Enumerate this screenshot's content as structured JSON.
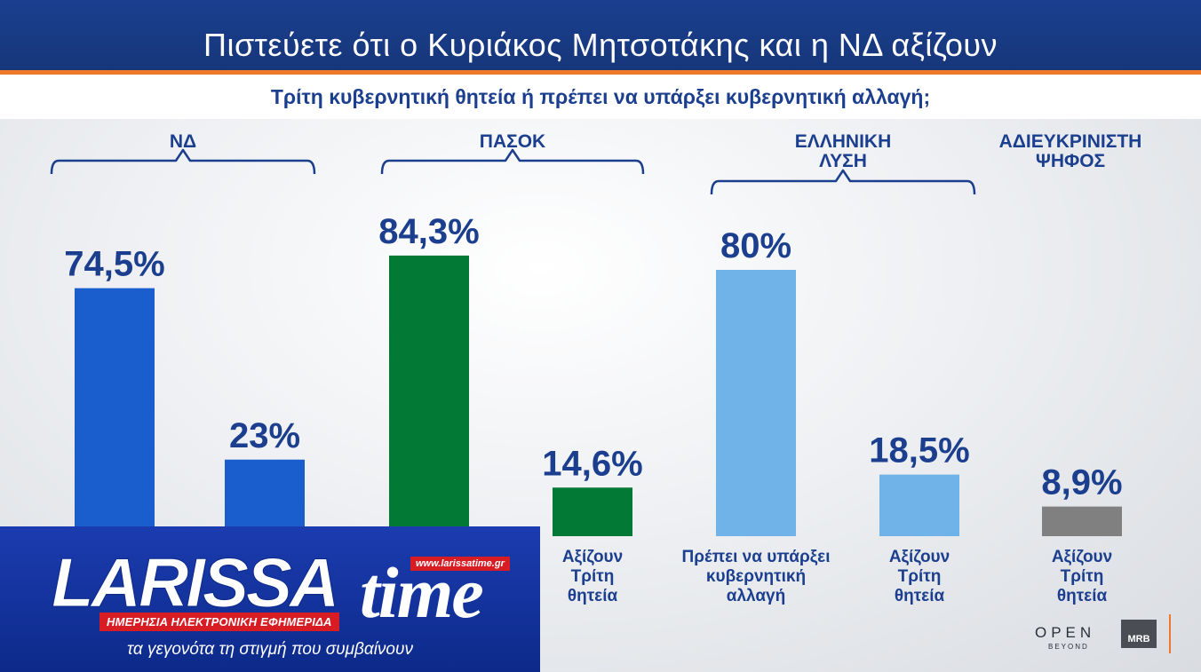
{
  "header": {
    "title": "Πιστεύετε ότι ο Κυριάκος Μητσοτάκης και η ΝΔ αξίζουν",
    "subtitle": "Τρίτη κυβερνητική θητεία ή πρέπει να υπάρξει κυβερνητική αλλαγή;"
  },
  "chart_data": {
    "type": "bar",
    "title": "Πιστεύετε ότι ο Κυριάκος Μητσοτάκης και η ΝΔ αξίζουν",
    "subtitle": "Τρίτη κυβερνητική θητεία ή πρέπει να υπάρξει κυβερνητική αλλαγή;",
    "groups": [
      {
        "name": "ΝΔ",
        "color": "#1a5dcc",
        "bars": [
          {
            "label": "",
            "value": 74.5,
            "value_label": "74,5%"
          },
          {
            "label": "",
            "value": 23,
            "value_label": "23%"
          }
        ]
      },
      {
        "name": "ΠΑΣΟΚ",
        "color": "#027a36",
        "bars": [
          {
            "label": "",
            "value": 84.3,
            "value_label": "84,3%"
          },
          {
            "label": "Αξίζουν Τρίτη θητεία",
            "value": 14.6,
            "value_label": "14,6%"
          }
        ]
      },
      {
        "name": "ΕΛΛΗΝΙΚΗ ΛΥΣΗ",
        "color": "#6fb3e8",
        "bars": [
          {
            "label": "Πρέπει να υπάρξει κυβερνητική αλλαγή",
            "value": 80,
            "value_label": "80%"
          },
          {
            "label": "Αξίζουν Τρίτη θητεία",
            "value": 18.5,
            "value_label": "18,5%"
          }
        ]
      },
      {
        "name": "ΑΔΙΕΥΚΡΙΝΙΣΤΗ ΨΗΦΟΣ",
        "color": "#808080",
        "bars": [
          {
            "label": "Αξίζουν Τρίτη θητεία",
            "value": 8.9,
            "value_label": "8,9%"
          }
        ]
      }
    ],
    "ylim": [
      0,
      100
    ],
    "grid": false,
    "legend": "none"
  },
  "logo": {
    "main": "LARISSA",
    "time": "time",
    "site": "www.larissatime.gr",
    "tag": "ΗΜΕΡΗΣΙΑ ΗΛΕΚΤΡΟΝΙΚΗ ΕΦΗΜΕΡΙΔΑ",
    "slogan": "τα γεγονότα τη στιγμή που συμβαίνουν"
  },
  "branding": {
    "open": "OPEN",
    "open_sub": "BEYOND",
    "mrb": "MRB"
  }
}
